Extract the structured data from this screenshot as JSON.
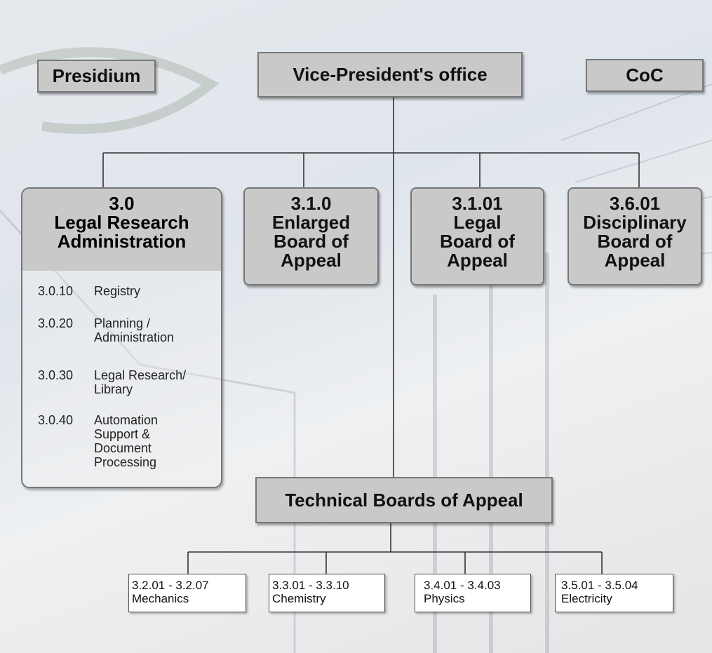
{
  "top": [
    {
      "label": "Presidium"
    },
    {
      "label": "Vice-President's office"
    },
    {
      "label": "CoC"
    }
  ],
  "boards": [
    {
      "code": "3.0",
      "name": "Legal Research Administration",
      "units": [
        {
          "code": "3.0.10",
          "name": "Registry"
        },
        {
          "code": "3.0.20",
          "name": "Planning / Administration"
        },
        {
          "code": "3.0.30",
          "name": "Legal Research/ Library"
        },
        {
          "code": "3.0.40",
          "name": "Automation Support & Document Processing"
        }
      ]
    },
    {
      "code": "3.1.0",
      "name": "Enlarged Board of Appeal"
    },
    {
      "code": "3.1.01",
      "name": "Legal Board of Appeal"
    },
    {
      "code": "3.6.01",
      "name": "Disciplinary Board of Appeal"
    }
  ],
  "technical": {
    "label": "Technical Boards of Appeal",
    "groups": [
      {
        "range": "3.2.01 - 3.2.07",
        "name": "Mechanics"
      },
      {
        "range": "3.3.01 - 3.3.10",
        "name": "Chemistry"
      },
      {
        "range": "3.4.01 - 3.4.03",
        "name": "Physics"
      },
      {
        "range": "3.5.01 - 3.5.04",
        "name": "Electricity"
      }
    ]
  }
}
